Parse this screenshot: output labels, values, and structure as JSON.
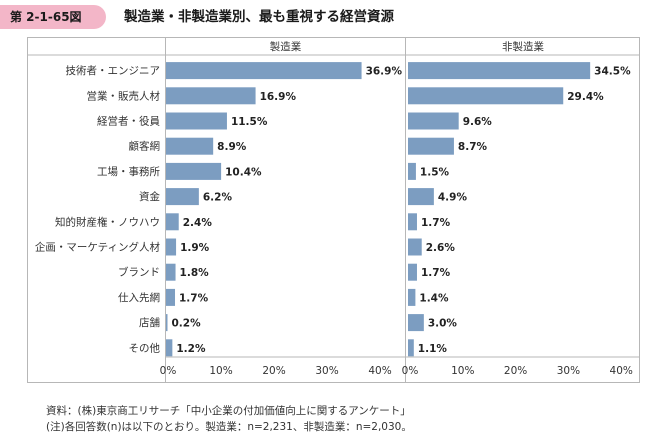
{
  "figure_number": "第 2-1-65図",
  "figure_title": "製造業・非製造業別、最も重視する経営資源",
  "notes": {
    "source": "資料：(株)東京商工リサーチ「中小企業の付加価値向上に関するアンケート」",
    "note": "(注)各回答数(n)は以下のとおり。製造業：n=2,231、非製造業：n=2,030。"
  },
  "colors": {
    "bar": "#7c9dc1",
    "badge": "#f3b6c8"
  },
  "chart_data": {
    "type": "bar",
    "orientation": "horizontal",
    "categories": [
      "技術者・エンジニア",
      "営業・販売人材",
      "経営者・役員",
      "顧客網",
      "工場・事務所",
      "資金",
      "知的財産権・ノウハウ",
      "企画・マーケティング人材",
      "ブランド",
      "仕入先網",
      "店舗",
      "その他"
    ],
    "series": [
      {
        "name": "製造業",
        "values": [
          36.9,
          16.9,
          11.5,
          8.9,
          10.4,
          6.2,
          2.4,
          1.9,
          1.8,
          1.7,
          0.2,
          1.2
        ]
      },
      {
        "name": "非製造業",
        "values": [
          34.5,
          29.4,
          9.6,
          8.7,
          1.5,
          4.9,
          1.7,
          2.6,
          1.7,
          1.4,
          3.0,
          1.1
        ]
      }
    ],
    "xlim": [
      0,
      40
    ],
    "xticks": [
      "0%",
      "10%",
      "20%",
      "30%",
      "40%"
    ],
    "value_suffix": "%"
  }
}
